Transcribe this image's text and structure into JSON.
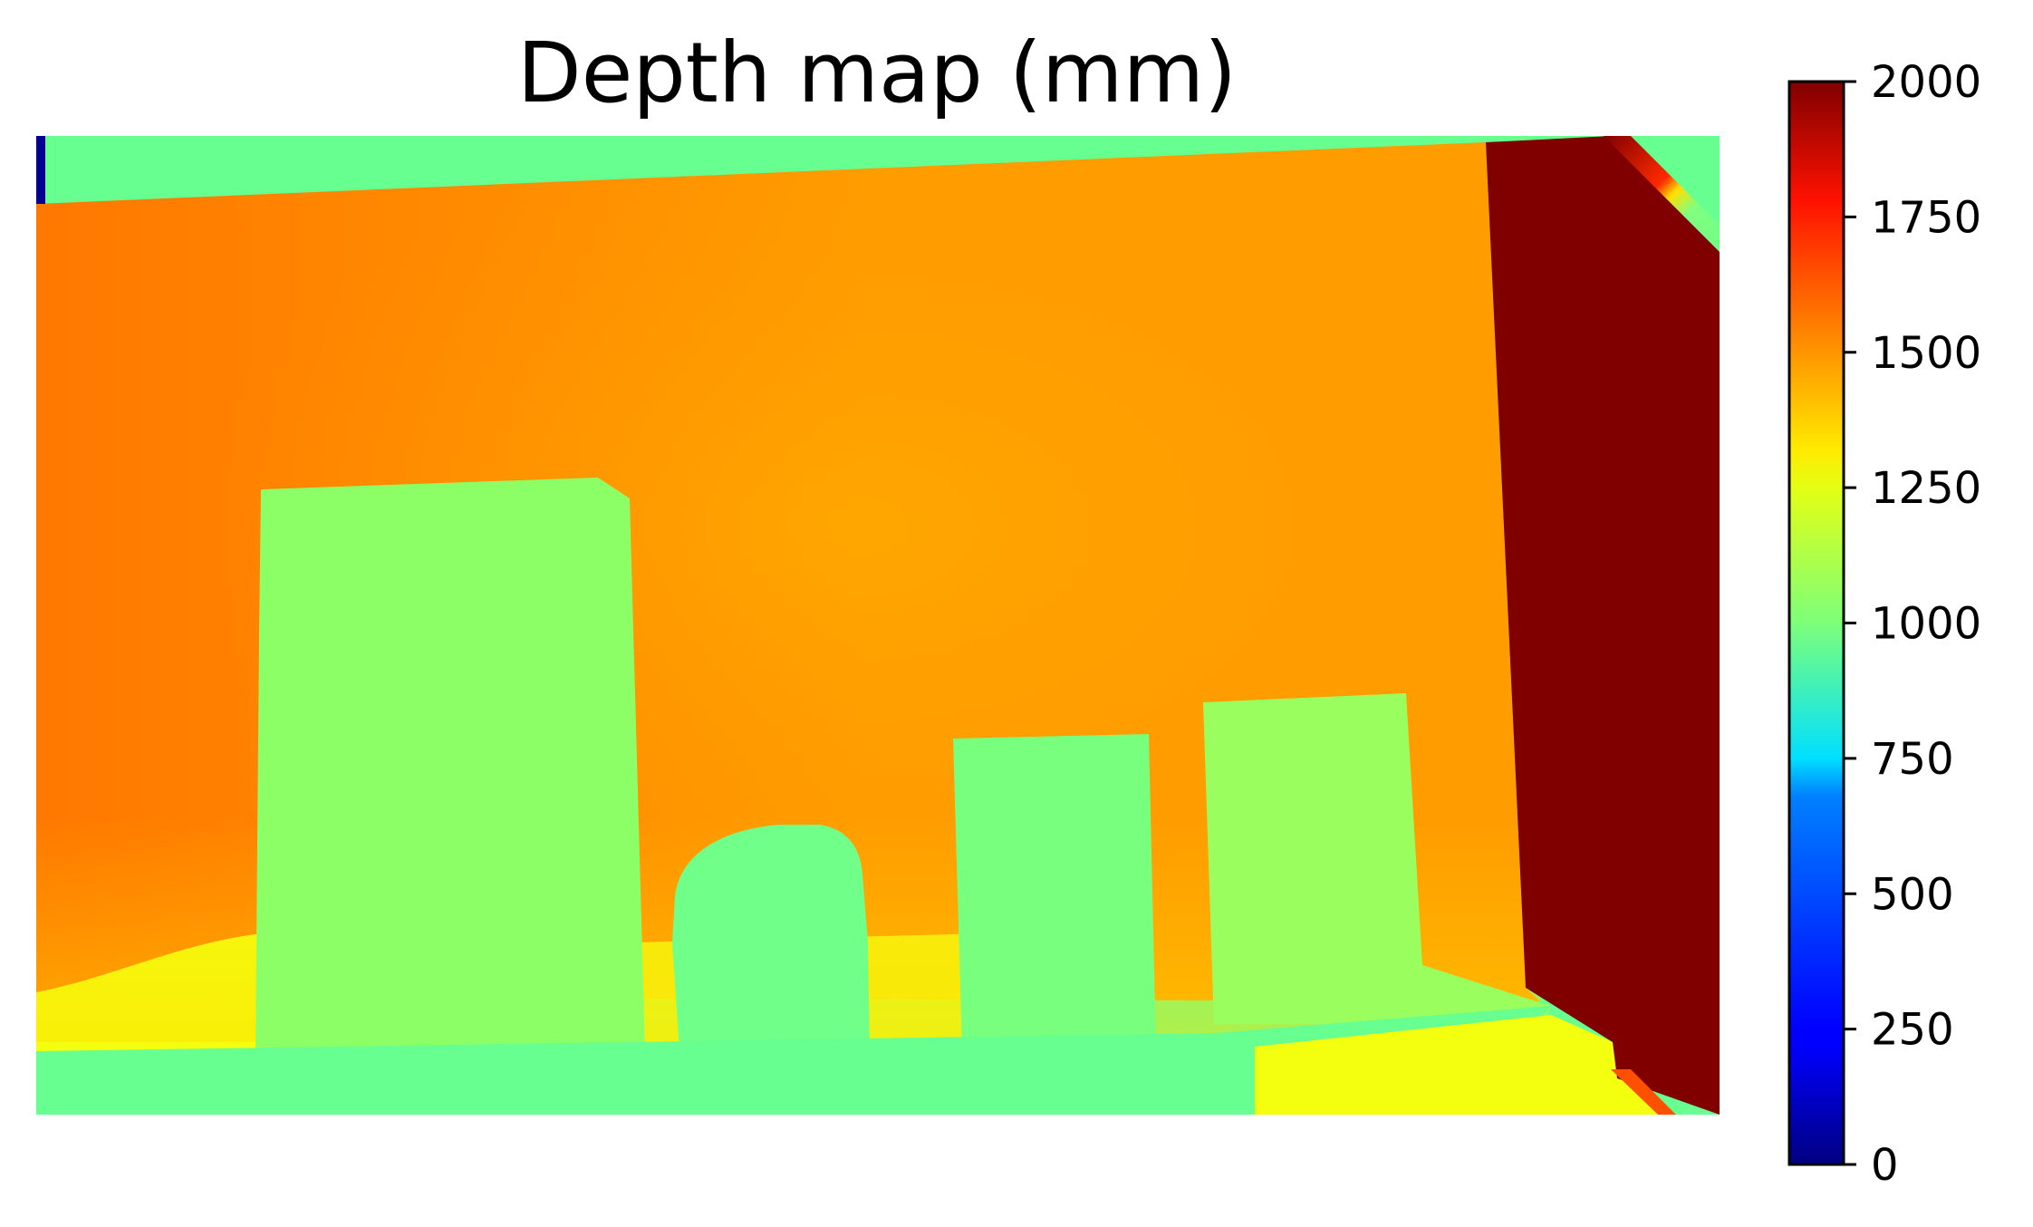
{
  "chart_data": {
    "type": "heatmap",
    "title": "Depth map (mm)",
    "xlabel": "",
    "ylabel": "",
    "axes_visible": false,
    "colormap": "jet",
    "colorbar": {
      "range": [
        0,
        2000
      ],
      "ticks": [
        0,
        250,
        500,
        750,
        1000,
        1250,
        1500,
        1750,
        2000
      ],
      "tick_labels": [
        "0",
        "250",
        "500",
        "750",
        "1000",
        "1250",
        "1500",
        "1750",
        "2000"
      ],
      "location": "right"
    },
    "approx_depth_regions_mm": {
      "back_wall": 1520,
      "left_wall": 1620,
      "right_side_panel": 2000,
      "top_band_and_floor": 950,
      "tall_box_left": 1100,
      "round_object": 950,
      "middle_box": 1000,
      "right_box": 1080,
      "floor_front_right": 1300
    },
    "colors": {
      "back_wall": "#ff9c00",
      "left_wall": "#ff7800",
      "right_side_panel": "#800000",
      "top_band_and_floor": "#66ff90",
      "tall_box_left": "#8cff66",
      "round_object": "#70ff88",
      "middle_box": "#78ff7e",
      "right_box": "#9aff5e",
      "floor_front_right": "#f4ff10"
    }
  }
}
